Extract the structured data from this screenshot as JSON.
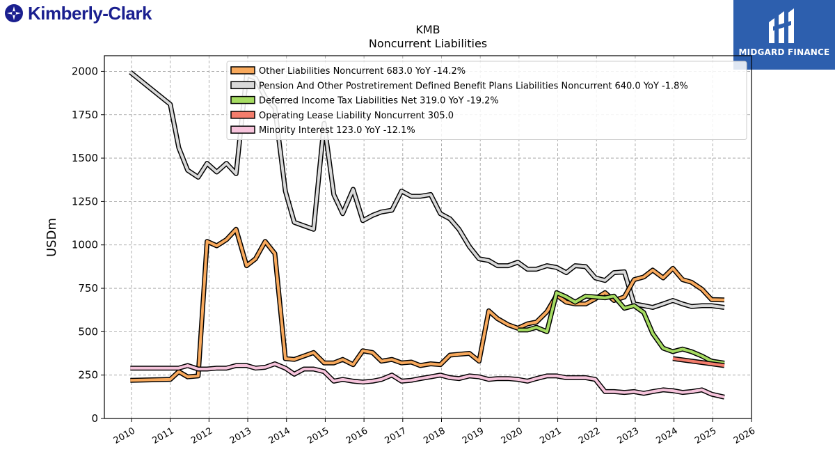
{
  "branding": {
    "company_logo": "Kimberly-Clark",
    "company_logo_icon": "kimberly-clark-mark-icon",
    "watermark": "MIDGARD FINANCE",
    "watermark_icon": "midgard-m-icon",
    "company_color": "#1a1f8f",
    "watermark_bg": "#2d5fae"
  },
  "chart_data": {
    "type": "line",
    "title": "KMB",
    "subtitle": "Noncurrent  Liabilities",
    "xlabel": "",
    "ylabel": "USDm",
    "xlim": [
      2009.3,
      2026.0
    ],
    "ylim": [
      0,
      2090
    ],
    "grid": true,
    "legend_position": "top",
    "x_ticks": [
      "2010",
      "2011",
      "2012",
      "2013",
      "2014",
      "2015",
      "2016",
      "2017",
      "2018",
      "2019",
      "2020",
      "2021",
      "2022",
      "2023",
      "2024",
      "2025",
      "2026"
    ],
    "y_ticks": [
      "0",
      "250",
      "500",
      "750",
      "1000",
      "1250",
      "1500",
      "1750",
      "2000"
    ],
    "series": [
      {
        "name": "Pension And Other Postretirement Defined Benefit Plans Liabilities Noncurrent",
        "legend_label": "Pension And Other Postretirement Defined Benefit Plans Liabilities Noncurrent  640.0 YoY -1.8%",
        "color": "#d9d9d9",
        "points": [
          [
            2009.97,
            1995
          ],
          [
            2011.0,
            1810
          ],
          [
            2011.22,
            1560
          ],
          [
            2011.45,
            1430
          ],
          [
            2011.72,
            1390
          ],
          [
            2011.95,
            1470
          ],
          [
            2012.2,
            1420
          ],
          [
            2012.45,
            1470
          ],
          [
            2012.7,
            1410
          ],
          [
            2012.97,
            1980
          ],
          [
            2013.2,
            1960
          ],
          [
            2013.45,
            1850
          ],
          [
            2013.7,
            1790
          ],
          [
            2013.97,
            1310
          ],
          [
            2014.2,
            1130
          ],
          [
            2014.45,
            1110
          ],
          [
            2014.7,
            1090
          ],
          [
            2014.97,
            1700
          ],
          [
            2015.22,
            1290
          ],
          [
            2015.45,
            1180
          ],
          [
            2015.72,
            1320
          ],
          [
            2015.97,
            1140
          ],
          [
            2016.22,
            1170
          ],
          [
            2016.45,
            1190
          ],
          [
            2016.72,
            1200
          ],
          [
            2016.97,
            1310
          ],
          [
            2017.22,
            1280
          ],
          [
            2017.45,
            1280
          ],
          [
            2017.72,
            1290
          ],
          [
            2017.97,
            1180
          ],
          [
            2018.22,
            1150
          ],
          [
            2018.45,
            1090
          ],
          [
            2018.72,
            990
          ],
          [
            2018.97,
            920
          ],
          [
            2019.22,
            910
          ],
          [
            2019.45,
            880
          ],
          [
            2019.72,
            880
          ],
          [
            2019.97,
            900
          ],
          [
            2020.22,
            860
          ],
          [
            2020.45,
            860
          ],
          [
            2020.72,
            880
          ],
          [
            2020.97,
            870
          ],
          [
            2021.22,
            840
          ],
          [
            2021.45,
            880
          ],
          [
            2021.72,
            875
          ],
          [
            2021.97,
            810
          ],
          [
            2022.22,
            795
          ],
          [
            2022.45,
            840
          ],
          [
            2022.72,
            845
          ],
          [
            2022.97,
            660
          ],
          [
            2023.22,
            650
          ],
          [
            2023.45,
            640
          ],
          [
            2023.72,
            660
          ],
          [
            2023.97,
            680
          ],
          [
            2024.22,
            660
          ],
          [
            2024.45,
            645
          ],
          [
            2024.72,
            650
          ],
          [
            2024.97,
            650
          ],
          [
            2025.3,
            640
          ]
        ]
      },
      {
        "name": "Other Liabilities Noncurrent",
        "legend_label": "Other Liabilities Noncurrent  683.0 YoY -14.2%",
        "color": "#f8a95c",
        "points": [
          [
            2009.97,
            220
          ],
          [
            2011.0,
            225
          ],
          [
            2011.22,
            270
          ],
          [
            2011.45,
            240
          ],
          [
            2011.72,
            245
          ],
          [
            2011.95,
            1020
          ],
          [
            2012.2,
            995
          ],
          [
            2012.45,
            1030
          ],
          [
            2012.7,
            1090
          ],
          [
            2012.97,
            880
          ],
          [
            2013.2,
            920
          ],
          [
            2013.45,
            1020
          ],
          [
            2013.7,
            950
          ],
          [
            2013.97,
            345
          ],
          [
            2014.2,
            340
          ],
          [
            2014.45,
            360
          ],
          [
            2014.7,
            380
          ],
          [
            2014.97,
            320
          ],
          [
            2015.22,
            320
          ],
          [
            2015.45,
            340
          ],
          [
            2015.72,
            310
          ],
          [
            2015.97,
            390
          ],
          [
            2016.22,
            380
          ],
          [
            2016.45,
            330
          ],
          [
            2016.72,
            340
          ],
          [
            2016.97,
            320
          ],
          [
            2017.22,
            325
          ],
          [
            2017.45,
            305
          ],
          [
            2017.72,
            315
          ],
          [
            2017.97,
            310
          ],
          [
            2018.22,
            365
          ],
          [
            2018.45,
            370
          ],
          [
            2018.72,
            375
          ],
          [
            2018.97,
            330
          ],
          [
            2019.22,
            620
          ],
          [
            2019.45,
            575
          ],
          [
            2019.72,
            540
          ],
          [
            2019.97,
            520
          ],
          [
            2020.22,
            545
          ],
          [
            2020.45,
            555
          ],
          [
            2020.72,
            615
          ],
          [
            2020.97,
            710
          ],
          [
            2021.22,
            670
          ],
          [
            2021.45,
            660
          ],
          [
            2021.72,
            660
          ],
          [
            2021.97,
            690
          ],
          [
            2022.22,
            725
          ],
          [
            2022.45,
            680
          ],
          [
            2022.72,
            700
          ],
          [
            2022.97,
            800
          ],
          [
            2023.22,
            815
          ],
          [
            2023.45,
            855
          ],
          [
            2023.72,
            810
          ],
          [
            2023.97,
            865
          ],
          [
            2024.22,
            800
          ],
          [
            2024.45,
            785
          ],
          [
            2024.72,
            745
          ],
          [
            2024.97,
            685
          ],
          [
            2025.3,
            683
          ]
        ]
      },
      {
        "name": "Deferred Income Tax Liabilities Net",
        "legend_label": "Deferred Income Tax Liabilities Net  319.0 YoY -19.2%",
        "color": "#a6dc62",
        "points": [
          [
            2019.97,
            510
          ],
          [
            2020.22,
            510
          ],
          [
            2020.45,
            525
          ],
          [
            2020.72,
            500
          ],
          [
            2020.97,
            725
          ],
          [
            2021.22,
            700
          ],
          [
            2021.45,
            670
          ],
          [
            2021.72,
            705
          ],
          [
            2021.97,
            700
          ],
          [
            2022.22,
            695
          ],
          [
            2022.45,
            705
          ],
          [
            2022.72,
            635
          ],
          [
            2022.97,
            650
          ],
          [
            2023.22,
            610
          ],
          [
            2023.45,
            490
          ],
          [
            2023.72,
            405
          ],
          [
            2023.97,
            385
          ],
          [
            2024.22,
            400
          ],
          [
            2024.45,
            385
          ],
          [
            2024.72,
            360
          ],
          [
            2024.97,
            330
          ],
          [
            2025.3,
            319
          ]
        ]
      },
      {
        "name": "Operating Lease Liability Noncurrent",
        "legend_label": "Operating Lease Liability Noncurrent  305.0",
        "color": "#f47d6c",
        "points": [
          [
            2023.97,
            345
          ],
          [
            2025.3,
            305
          ]
        ]
      },
      {
        "name": "Minority Interest",
        "legend_label": "Minority Interest  123.0 YoY -12.1%",
        "color": "#f7c4dc",
        "points": [
          [
            2009.97,
            290
          ],
          [
            2011.0,
            290
          ],
          [
            2011.22,
            290
          ],
          [
            2011.45,
            305
          ],
          [
            2011.72,
            285
          ],
          [
            2011.95,
            285
          ],
          [
            2012.2,
            290
          ],
          [
            2012.45,
            290
          ],
          [
            2012.7,
            305
          ],
          [
            2012.97,
            305
          ],
          [
            2013.2,
            290
          ],
          [
            2013.45,
            295
          ],
          [
            2013.7,
            315
          ],
          [
            2013.97,
            290
          ],
          [
            2014.2,
            255
          ],
          [
            2014.45,
            285
          ],
          [
            2014.7,
            285
          ],
          [
            2014.97,
            270
          ],
          [
            2015.22,
            215
          ],
          [
            2015.45,
            225
          ],
          [
            2015.72,
            215
          ],
          [
            2015.97,
            210
          ],
          [
            2016.22,
            215
          ],
          [
            2016.45,
            225
          ],
          [
            2016.72,
            250
          ],
          [
            2016.97,
            215
          ],
          [
            2017.22,
            220
          ],
          [
            2017.45,
            230
          ],
          [
            2017.72,
            240
          ],
          [
            2017.97,
            250
          ],
          [
            2018.22,
            235
          ],
          [
            2018.45,
            230
          ],
          [
            2018.72,
            245
          ],
          [
            2018.97,
            240
          ],
          [
            2019.22,
            225
          ],
          [
            2019.45,
            230
          ],
          [
            2019.72,
            230
          ],
          [
            2019.97,
            225
          ],
          [
            2020.22,
            215
          ],
          [
            2020.45,
            230
          ],
          [
            2020.72,
            245
          ],
          [
            2020.97,
            245
          ],
          [
            2021.22,
            235
          ],
          [
            2021.45,
            235
          ],
          [
            2021.72,
            235
          ],
          [
            2021.97,
            225
          ],
          [
            2022.22,
            155
          ],
          [
            2022.45,
            155
          ],
          [
            2022.72,
            150
          ],
          [
            2022.97,
            155
          ],
          [
            2023.22,
            145
          ],
          [
            2023.45,
            155
          ],
          [
            2023.72,
            165
          ],
          [
            2023.97,
            160
          ],
          [
            2024.22,
            150
          ],
          [
            2024.45,
            155
          ],
          [
            2024.72,
            165
          ],
          [
            2024.97,
            140
          ],
          [
            2025.3,
            123
          ]
        ]
      }
    ]
  }
}
